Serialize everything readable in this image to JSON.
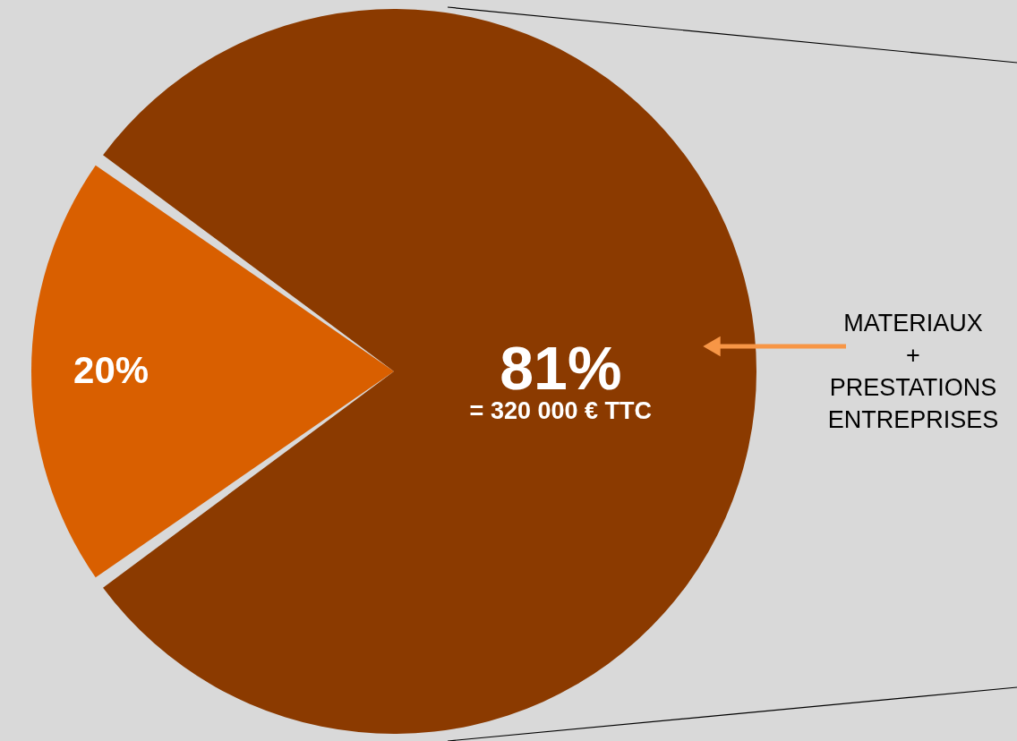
{
  "chart_data": {
    "type": "pie",
    "categories": [
      null,
      null
    ],
    "values": [
      20,
      81
    ],
    "colors": [
      "#d95f00",
      "#8b3a00"
    ],
    "value_labels": [
      "20%",
      "81%"
    ],
    "annotations": [
      "= 320 000 € TTC",
      "MATERIAUX\n+\nPRESTATIONS\nENTREPRISES"
    ]
  }
}
